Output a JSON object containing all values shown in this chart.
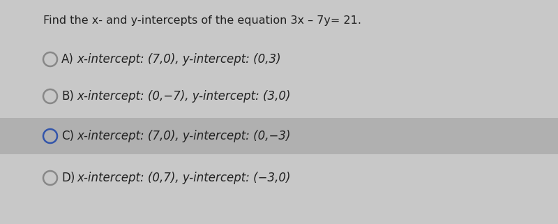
{
  "title": "Find the x- and y-intercepts of the equation 3x – 7y= 21.",
  "title_parts": [
    {
      "text": "Find the ",
      "style": "normal"
    },
    {
      "text": "x",
      "style": "italic"
    },
    {
      "text": "- and ",
      "style": "normal"
    },
    {
      "text": "y",
      "style": "italic"
    },
    {
      "text": "-intercepts of the equation 3",
      "style": "normal"
    },
    {
      "text": "x",
      "style": "italic"
    },
    {
      "text": " – 7",
      "style": "normal"
    },
    {
      "text": "y",
      "style": "italic"
    },
    {
      "text": "= 21.",
      "style": "normal"
    }
  ],
  "options": [
    {
      "label": "A)",
      "text": "x-intercept: (7,0), ",
      "text2": "y",
      "text3": "-intercept: (0,3)",
      "highlighted": false,
      "circle_color": "#888888",
      "circle_blue": false
    },
    {
      "label": "B)",
      "text": "x-intercept: (0,−7), ",
      "text2": "y",
      "text3": "-intercept: (3,0)",
      "highlighted": false,
      "circle_color": "#888888",
      "circle_blue": false
    },
    {
      "label": "C)",
      "text": "x-intercept: (7,0), ",
      "text2": "y",
      "text3": "-intercept: (0,−3)",
      "highlighted": true,
      "circle_color": "#3355aa",
      "circle_blue": true
    },
    {
      "label": "D)",
      "text": "x-intercept: (0,7), ",
      "text2": "y",
      "text3": "-intercept: (−3,0)",
      "highlighted": false,
      "circle_color": "#888888",
      "circle_blue": false
    }
  ],
  "bg_color": "#c8c8c8",
  "highlight_color": "#b0b0b0",
  "title_fontsize": 11.5,
  "option_fontsize": 12,
  "label_fontsize": 12
}
